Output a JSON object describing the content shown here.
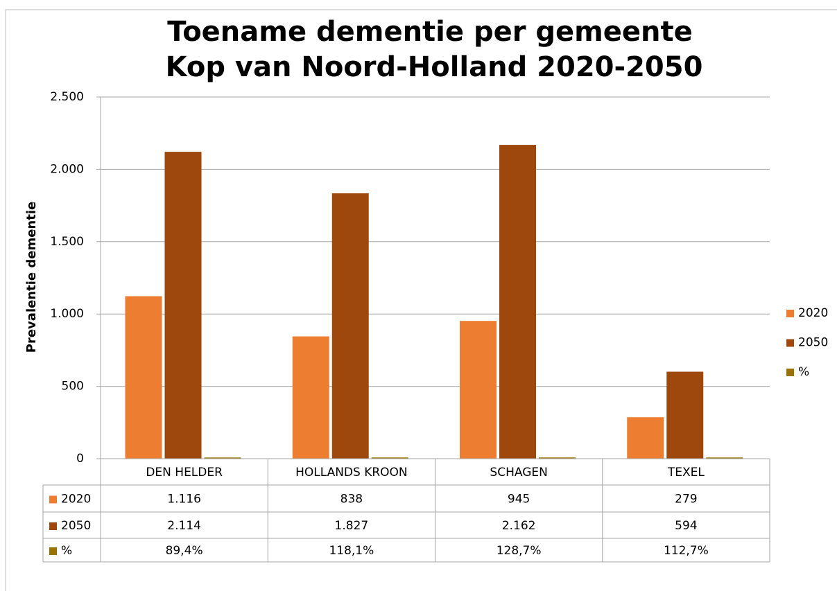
{
  "chart_data": {
    "type": "bar",
    "title": [
      "Toename dementie per gemeente",
      "Kop van Noord-Holland  2020-2050"
    ],
    "ylabel": "Prevalentie dementie",
    "categories": [
      "DEN HELDER",
      "HOLLANDS KROON",
      "SCHAGEN",
      "TEXEL"
    ],
    "series": [
      {
        "name": "2020",
        "color": "#ed7d31",
        "values": [
          1116,
          838,
          945,
          279
        ],
        "value_labels": [
          "1.116",
          "838",
          "945",
          "279"
        ]
      },
      {
        "name": "2050",
        "color": "#9e480e",
        "values": [
          2114,
          1827,
          2162,
          594
        ],
        "value_labels": [
          "2.114",
          "1.827",
          "2.162",
          "594"
        ]
      },
      {
        "name": "%",
        "color": "#997300",
        "values": [
          0.894,
          1.181,
          1.287,
          1.127
        ],
        "value_labels": [
          "89,4%",
          "118,1%",
          "128,7%",
          "112,7%"
        ]
      }
    ],
    "ylim": [
      0,
      2500
    ],
    "yticks": [
      0,
      500,
      {
        "value": 1000,
        "label": "1.000"
      },
      {
        "value": 1500,
        "label": "1.500"
      },
      {
        "value": 2000,
        "label": "2.000"
      },
      {
        "value": 2500,
        "label": "2.500"
      }
    ],
    "grid": true,
    "legend": "right",
    "data_table": true
  }
}
